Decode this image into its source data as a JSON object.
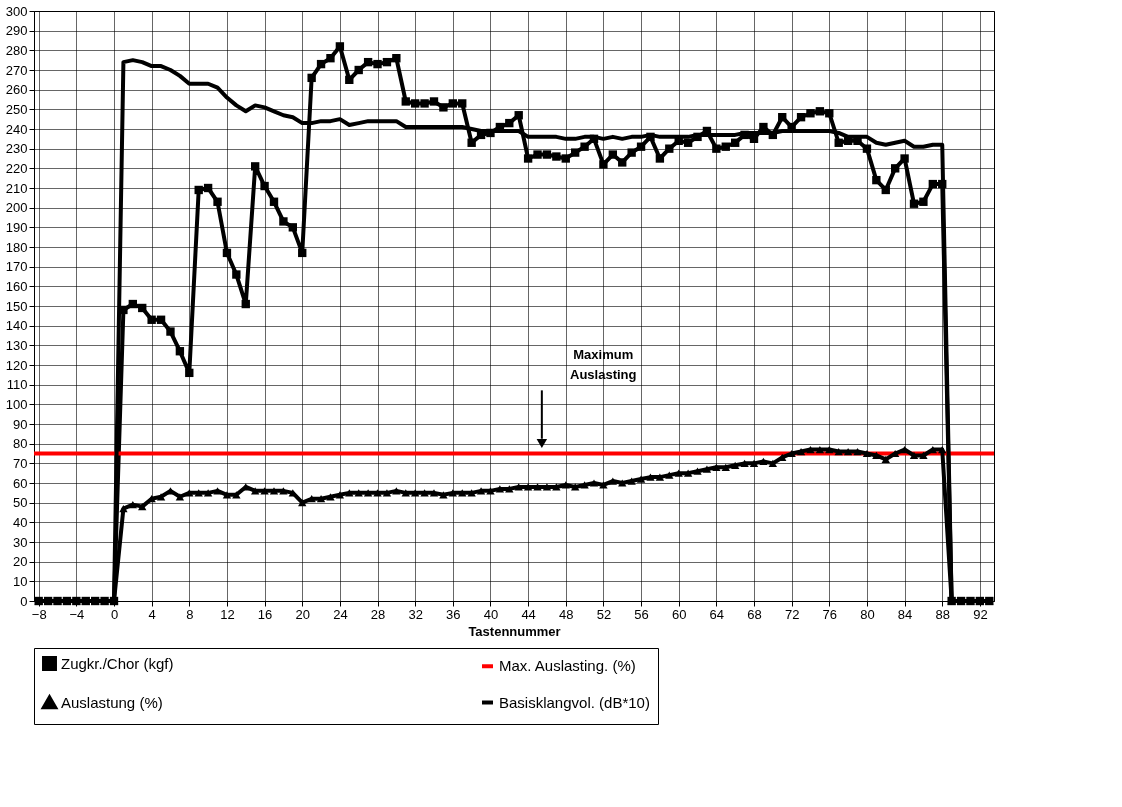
{
  "chart_data": {
    "type": "line",
    "xlabel": "Tastennummer",
    "xlim": [
      -8.5,
      93.5
    ],
    "xticks": [
      -8,
      -4,
      0,
      4,
      8,
      12,
      16,
      20,
      24,
      28,
      32,
      36,
      40,
      44,
      48,
      52,
      56,
      60,
      64,
      68,
      72,
      76,
      80,
      84,
      88,
      92
    ],
    "ylim": [
      0,
      300
    ],
    "yticks": [
      0,
      10,
      20,
      30,
      40,
      50,
      60,
      70,
      80,
      90,
      100,
      110,
      120,
      130,
      140,
      150,
      160,
      170,
      180,
      190,
      200,
      210,
      220,
      230,
      240,
      250,
      260,
      270,
      280,
      290,
      300
    ],
    "grid": true,
    "legend": "bottom",
    "line_style": "solid",
    "annotations": [
      "Maximum Auslasting"
    ],
    "x": [
      -8,
      -7,
      -6,
      -5,
      -4,
      -3,
      -2,
      -1,
      0,
      1,
      2,
      3,
      4,
      5,
      6,
      7,
      8,
      9,
      10,
      11,
      12,
      13,
      14,
      15,
      16,
      17,
      18,
      19,
      20,
      21,
      22,
      23,
      24,
      25,
      26,
      27,
      28,
      29,
      30,
      31,
      32,
      33,
      34,
      35,
      36,
      37,
      38,
      39,
      40,
      41,
      42,
      43,
      44,
      45,
      46,
      47,
      48,
      49,
      50,
      51,
      52,
      53,
      54,
      55,
      56,
      57,
      58,
      59,
      60,
      61,
      62,
      63,
      64,
      65,
      66,
      67,
      68,
      69,
      70,
      71,
      72,
      73,
      74,
      75,
      76,
      77,
      78,
      79,
      80,
      81,
      82,
      83,
      84,
      85,
      86,
      87,
      88,
      89,
      90,
      91,
      92,
      93
    ],
    "series": [
      {
        "name": "Zugkr./Chor (kgf)",
        "color": "#000000",
        "marker": "square",
        "values": [
          0,
          0,
          0,
          0,
          0,
          0,
          0,
          0,
          0,
          148,
          151,
          149,
          143,
          143,
          137,
          127,
          116,
          209,
          210,
          203,
          177,
          166,
          151,
          221,
          211,
          203,
          193,
          190,
          177,
          266,
          273,
          276,
          282,
          265,
          270,
          274,
          273,
          274,
          276,
          254,
          253,
          253,
          254,
          251,
          253,
          253,
          233,
          237,
          238,
          241,
          243,
          247,
          225,
          227,
          227,
          226,
          225,
          228,
          231,
          235,
          222,
          227,
          223,
          228,
          231,
          236,
          225,
          230,
          234,
          233,
          236,
          239,
          230,
          231,
          233,
          237,
          235,
          241,
          237,
          246,
          241,
          246,
          248,
          249,
          248,
          233,
          234,
          234,
          230,
          214,
          209,
          220,
          225,
          202,
          203,
          212,
          212,
          0,
          0,
          0,
          0,
          0
        ]
      },
      {
        "name": "Max. Auslasting. (%)",
        "color": "#ff0000",
        "marker": "none",
        "x": [
          -8.5,
          93.5
        ],
        "values": [
          75,
          75
        ]
      },
      {
        "name": "Auslastung (%)",
        "color": "#000000",
        "marker": "triangle",
        "values": [
          0,
          0,
          0,
          0,
          0,
          0,
          0,
          0,
          0,
          47,
          49,
          48,
          52,
          53,
          56,
          53,
          55,
          55,
          55,
          56,
          54,
          54,
          58,
          56,
          56,
          56,
          56,
          55,
          50,
          52,
          52,
          53,
          54,
          55,
          55,
          55,
          55,
          55,
          56,
          55,
          55,
          55,
          55,
          54,
          55,
          55,
          55,
          56,
          56,
          57,
          57,
          58,
          58,
          58,
          58,
          58,
          59,
          58,
          59,
          60,
          59,
          61,
          60,
          61,
          62,
          63,
          63,
          64,
          65,
          65,
          66,
          67,
          68,
          68,
          69,
          70,
          70,
          71,
          70,
          73,
          75,
          76,
          77,
          77,
          77,
          76,
          76,
          76,
          75,
          74,
          72,
          75,
          77,
          74,
          74,
          77,
          77,
          0,
          0,
          0,
          0,
          0
        ]
      },
      {
        "name": "Basisklangvol. (dB*10)",
        "color": "#000000",
        "marker": "none",
        "values": [
          0,
          0,
          0,
          0,
          0,
          0,
          0,
          0,
          0,
          274,
          275,
          274,
          272,
          272,
          270,
          267,
          263,
          263,
          263,
          261,
          256,
          252,
          249,
          252,
          251,
          249,
          247,
          246,
          243,
          243,
          244,
          244,
          245,
          242,
          243,
          244,
          244,
          244,
          244,
          241,
          241,
          241,
          241,
          241,
          241,
          241,
          240,
          239,
          239,
          239,
          239,
          239,
          236,
          236,
          236,
          236,
          235,
          235,
          236,
          236,
          235,
          236,
          235,
          236,
          236,
          237,
          236,
          236,
          236,
          236,
          237,
          237,
          237,
          237,
          237,
          238,
          238,
          238,
          238,
          239,
          239,
          239,
          239,
          239,
          239,
          238,
          236,
          236,
          236,
          233,
          232,
          233,
          234,
          231,
          231,
          232,
          232,
          0,
          0,
          0,
          0,
          0
        ]
      }
    ]
  }
}
